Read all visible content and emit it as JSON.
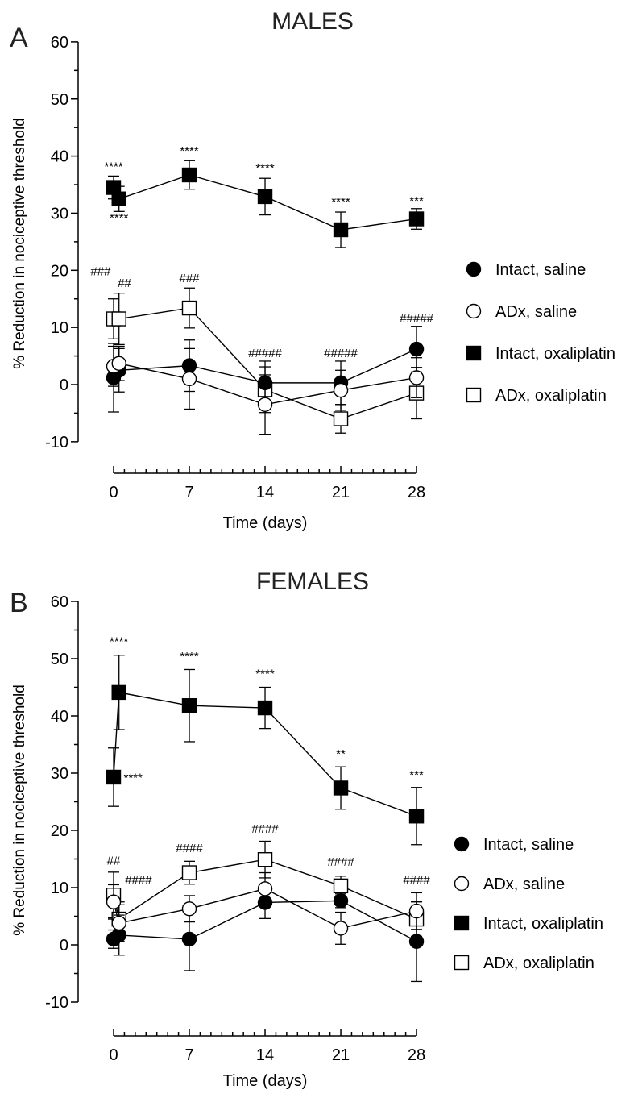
{
  "chart_data": [
    {
      "type": "line",
      "panel_label": "A",
      "title": "MALES",
      "xlabel": "Time (days)",
      "ylabel": "% Reduction in nociceptive threshold",
      "xlim": [
        0,
        28
      ],
      "ylim": [
        -10,
        60
      ],
      "x_ticks": [
        0,
        7,
        14,
        21,
        28
      ],
      "y_ticks": [
        -10,
        0,
        10,
        20,
        30,
        40,
        50,
        60
      ],
      "legend_position": "right",
      "series": [
        {
          "name": "Intact, saline",
          "marker": "circle-filled",
          "x": [
            0,
            0.5,
            7,
            14,
            21,
            28
          ],
          "y": [
            1.2,
            2.5,
            3.3,
            0.3,
            0.3,
            6.2
          ],
          "err": [
            6.0,
            3.8,
            4.5,
            3.8,
            3.8,
            4.0
          ]
        },
        {
          "name": "ADx, saline",
          "marker": "circle-open",
          "x": [
            0,
            0.5,
            7,
            14,
            21,
            28
          ],
          "y": [
            3.2,
            3.7,
            1.0,
            -3.5,
            -1.0,
            1.2
          ],
          "err": [
            3.5,
            3.0,
            5.3,
            5.2,
            3.5,
            3.5
          ]
        },
        {
          "name": "Intact, oxaliplatin",
          "marker": "square-filled",
          "x": [
            0,
            0.5,
            7,
            14,
            21,
            28
          ],
          "y": [
            34.5,
            32.5,
            36.7,
            32.9,
            27.1,
            29.0
          ],
          "err": [
            2.0,
            2.2,
            2.5,
            3.2,
            3.1,
            1.8
          ]
        },
        {
          "name": "ADx, oxaliplatin",
          "marker": "square-open",
          "x": [
            0,
            0.5,
            7,
            14,
            21,
            28
          ],
          "y": [
            11.5,
            11.5,
            13.4,
            -0.9,
            -6.0,
            -1.5
          ],
          "err": [
            3.5,
            4.5,
            3.5,
            4.0,
            2.5,
            4.5
          ]
        }
      ],
      "annotations": [
        {
          "text": "****",
          "x": 0,
          "y": 37.5
        },
        {
          "text": "****",
          "x": 0.5,
          "y": 28.5
        },
        {
          "text": "****",
          "x": 7,
          "y": 40.2
        },
        {
          "text": "****",
          "x": 14,
          "y": 37.2
        },
        {
          "text": "****",
          "x": 21,
          "y": 31.3
        },
        {
          "text": "***",
          "x": 28,
          "y": 31.5
        },
        {
          "text": "###",
          "x": -1.2,
          "y": 19.1
        },
        {
          "text": "##",
          "x": 1.0,
          "y": 17.1
        },
        {
          "text": "###",
          "x": 7,
          "y": 17.9
        },
        {
          "text": "#####",
          "x": 14,
          "y": 4.8
        },
        {
          "text": "#####",
          "x": 21,
          "y": 4.8
        },
        {
          "text": "#####",
          "x": 28,
          "y": 10.9
        }
      ]
    },
    {
      "type": "line",
      "panel_label": "B",
      "title": "FEMALES",
      "xlabel": "Time (days)",
      "ylabel": "% Reduction in nociceptive threshold",
      "xlim": [
        0,
        28
      ],
      "ylim": [
        -10,
        60
      ],
      "x_ticks": [
        0,
        7,
        14,
        21,
        28
      ],
      "y_ticks": [
        -10,
        0,
        10,
        20,
        30,
        40,
        50,
        60
      ],
      "legend_position": "right",
      "series": [
        {
          "name": "Intact, saline",
          "marker": "circle-filled",
          "x": [
            0,
            0.5,
            7,
            14,
            21,
            28
          ],
          "y": [
            1.0,
            1.7,
            1.0,
            7.4,
            7.7,
            0.6
          ],
          "err": [
            1.6,
            3.5,
            5.5,
            2.8,
            1.2,
            7.0
          ]
        },
        {
          "name": "ADx, saline",
          "marker": "circle-open",
          "x": [
            0,
            0.5,
            7,
            14,
            21,
            28
          ],
          "y": [
            7.5,
            3.8,
            6.3,
            9.8,
            2.9,
            5.9
          ],
          "err": [
            3.0,
            3.2,
            2.3,
            2.8,
            2.8,
            3.2
          ]
        },
        {
          "name": "Intact, oxaliplatin",
          "marker": "square-filled",
          "x": [
            0,
            0.5,
            7,
            14,
            21,
            28
          ],
          "y": [
            29.3,
            44.1,
            41.8,
            41.4,
            27.4,
            22.5
          ],
          "err": [
            5.1,
            6.5,
            6.3,
            3.6,
            3.7,
            5.0
          ]
        },
        {
          "name": "ADx, oxaliplatin",
          "marker": "square-open",
          "x": [
            0,
            0.5,
            7,
            14,
            21,
            28
          ],
          "y": [
            8.7,
            4.5,
            12.6,
            14.9,
            10.3,
            4.5
          ],
          "err": [
            4.0,
            3.0,
            2.0,
            3.2,
            1.7,
            3.0
          ]
        }
      ],
      "annotations": [
        {
          "text": "****",
          "x": 0.5,
          "y": 52.3
        },
        {
          "text": "****",
          "x": 1.8,
          "y": 28.5
        },
        {
          "text": "****",
          "x": 7,
          "y": 49.7
        },
        {
          "text": "****",
          "x": 14,
          "y": 46.7
        },
        {
          "text": "**",
          "x": 21,
          "y": 32.7
        },
        {
          "text": "***",
          "x": 28,
          "y": 29.0
        },
        {
          "text": "##",
          "x": 0,
          "y": 14.0
        },
        {
          "text": "####",
          "x": 2.3,
          "y": 10.6
        },
        {
          "text": "####",
          "x": 7,
          "y": 16.2
        },
        {
          "text": "####",
          "x": 14,
          "y": 19.6
        },
        {
          "text": "####",
          "x": 21,
          "y": 13.8
        },
        {
          "text": "####",
          "x": 28,
          "y": 10.6
        }
      ]
    }
  ]
}
